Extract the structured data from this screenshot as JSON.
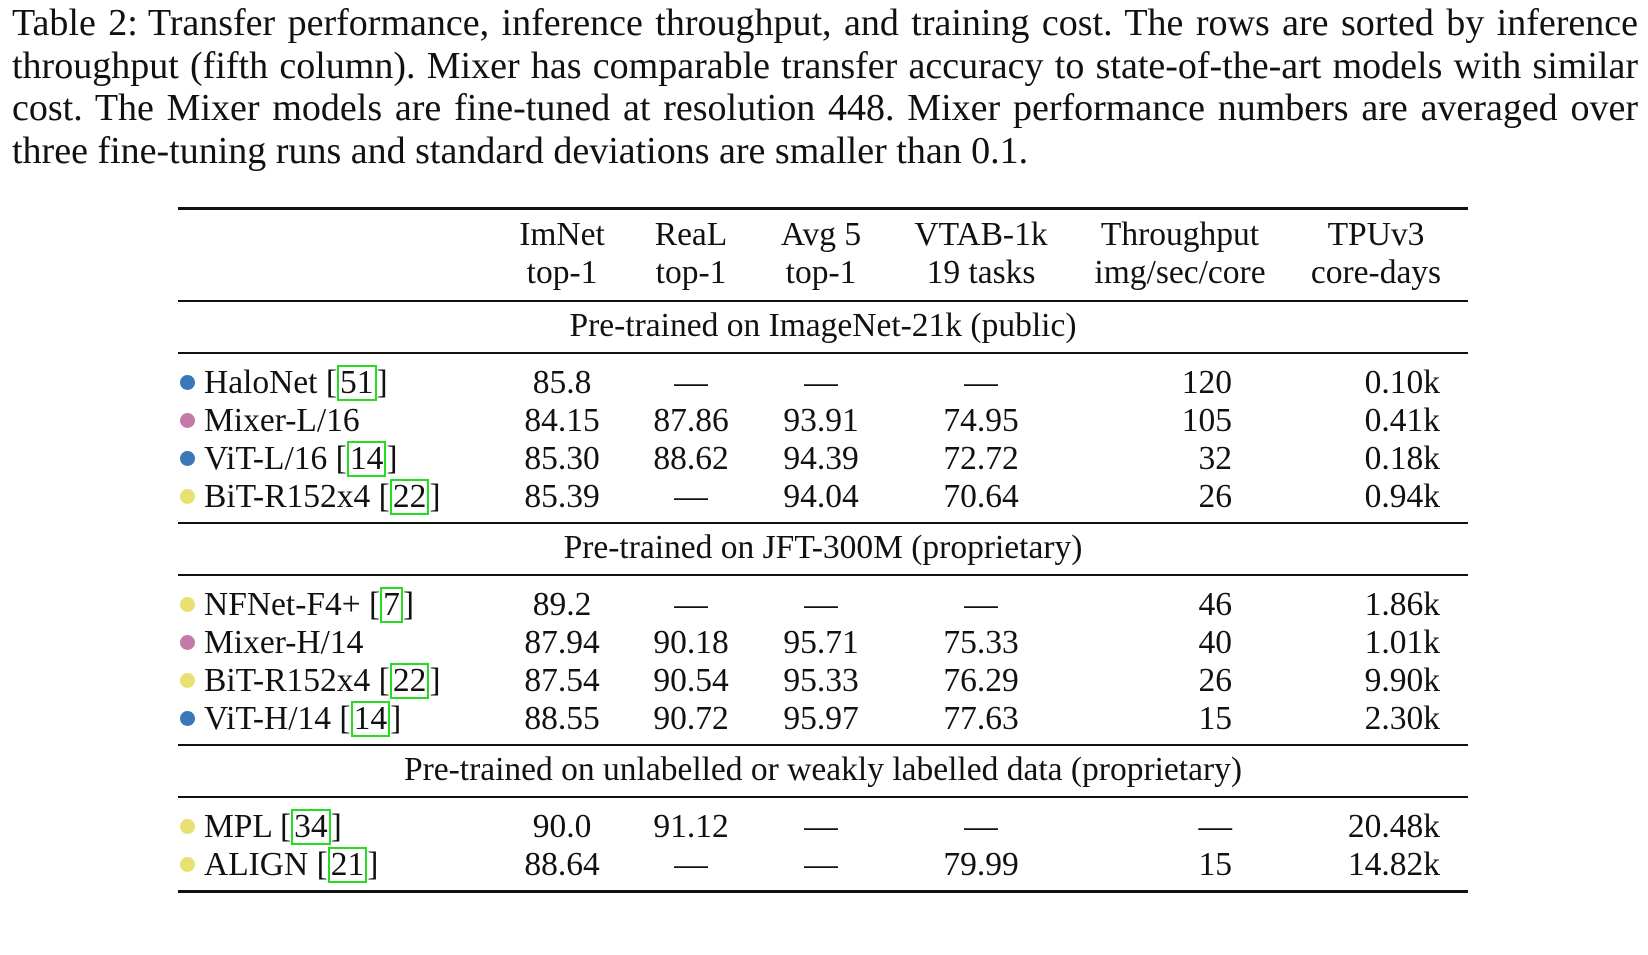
{
  "caption": {
    "label": "Table 2:",
    "text": "Transfer performance, inference throughput, and training cost. The rows are sorted by inference throughput (fifth column). Mixer has comparable transfer accuracy to state-of-the-art models with similar cost. The Mixer models are fine-tuned at resolution 448. Mixer performance numbers are averaged over three fine-tuning runs and standard deviations are smaller than 0.1."
  },
  "colors": {
    "blue": "#3a78b8",
    "pink": "#c47aa8",
    "yellow": "#e8e070",
    "cite_border": "#22dd22"
  },
  "table": {
    "headers": [
      {
        "line1": "",
        "line2": ""
      },
      {
        "line1": "ImNet",
        "line2": "top-1"
      },
      {
        "line1": "ReaL",
        "line2": "top-1"
      },
      {
        "line1": "Avg 5",
        "line2": "top-1"
      },
      {
        "line1": "VTAB-1k",
        "line2": "19 tasks"
      },
      {
        "line1": "Throughput",
        "line2": "img/sec/core"
      },
      {
        "line1": "TPUv3",
        "line2": "core-days"
      }
    ],
    "groups": [
      {
        "title": "Pre-trained on ImageNet-21k (public)",
        "rows": [
          {
            "dot": "blue",
            "model": "HaloNet [",
            "cite": "51",
            "close": "]",
            "imnet": "85.8",
            "real": "—",
            "avg5": "—",
            "vtab": "—",
            "throughput": "120",
            "tpu": "0.10k"
          },
          {
            "dot": "pink",
            "model": "Mixer-L/16",
            "cite": "",
            "close": "",
            "imnet": "84.15",
            "real": "87.86",
            "avg5": "93.91",
            "vtab": "74.95",
            "throughput": "105",
            "tpu": "0.41k"
          },
          {
            "dot": "blue",
            "model": "ViT-L/16 [",
            "cite": "14",
            "close": "]",
            "imnet": "85.30",
            "real": "88.62",
            "avg5": "94.39",
            "vtab": "72.72",
            "throughput": "32",
            "tpu": "0.18k"
          },
          {
            "dot": "yellow",
            "model": "BiT-R152x4 [",
            "cite": "22",
            "close": "]",
            "imnet": "85.39",
            "real": "—",
            "avg5": "94.04",
            "vtab": "70.64",
            "throughput": "26",
            "tpu": "0.94k"
          }
        ]
      },
      {
        "title": "Pre-trained on JFT-300M (proprietary)",
        "rows": [
          {
            "dot": "yellow",
            "model": "NFNet-F4+ [",
            "cite": "7",
            "close": "]",
            "imnet": "89.2",
            "real": "—",
            "avg5": "—",
            "vtab": "—",
            "throughput": "46",
            "tpu": "1.86k"
          },
          {
            "dot": "pink",
            "model": "Mixer-H/14",
            "cite": "",
            "close": "",
            "imnet": "87.94",
            "real": "90.18",
            "avg5": "95.71",
            "vtab": "75.33",
            "throughput": "40",
            "tpu": "1.01k"
          },
          {
            "dot": "yellow",
            "model": "BiT-R152x4 [",
            "cite": "22",
            "close": "]",
            "imnet": "87.54",
            "real": "90.54",
            "avg5": "95.33",
            "vtab": "76.29",
            "throughput": "26",
            "tpu": "9.90k"
          },
          {
            "dot": "blue",
            "model": "ViT-H/14 [",
            "cite": "14",
            "close": "]",
            "imnet": "88.55",
            "real": "90.72",
            "avg5": "95.97",
            "vtab": "77.63",
            "throughput": "15",
            "tpu": "2.30k"
          }
        ]
      },
      {
        "title": "Pre-trained on unlabelled or weakly labelled data (proprietary)",
        "rows": [
          {
            "dot": "yellow",
            "model": "MPL [",
            "cite": "34",
            "close": "]",
            "imnet": "90.0",
            "real": "91.12",
            "avg5": "—",
            "vtab": "—",
            "throughput": "—",
            "tpu": "20.48k"
          },
          {
            "dot": "yellow",
            "model": "ALIGN [",
            "cite": "21",
            "close": "]",
            "imnet": "88.64",
            "real": "—",
            "avg5": "—",
            "vtab": "79.99",
            "throughput": "15",
            "tpu": "14.82k"
          }
        ]
      }
    ]
  }
}
